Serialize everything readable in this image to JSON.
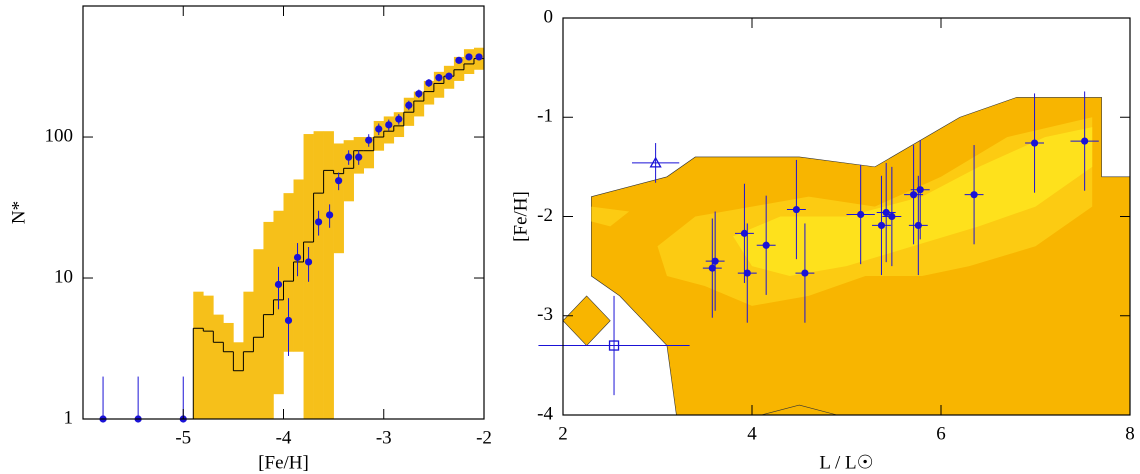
{
  "chart_data": [
    {
      "type": "histogram",
      "xlabel": "[Fe/H]",
      "ylabel": "N*",
      "xlim": [
        -6,
        -2
      ],
      "ylim": [
        1,
        850
      ],
      "log_y": true,
      "xticks": [
        -5,
        -4,
        -3,
        -2
      ],
      "yticks": [
        1,
        10,
        100
      ],
      "bins": [
        -4.9,
        -4.8,
        -4.7,
        -4.6,
        -4.5,
        -4.4,
        -4.3,
        -4.2,
        -4.1,
        -4.0,
        -3.9,
        -3.8,
        -3.7,
        -3.6,
        -3.5,
        -3.4,
        -3.3,
        -3.2,
        -3.1,
        -3.0,
        -2.9,
        -2.8,
        -2.7,
        -2.6,
        -2.5,
        -2.4,
        -2.3,
        -2.2,
        -2.1,
        -2.0
      ],
      "counts": [
        4.4,
        4.2,
        3.5,
        3.0,
        2.2,
        3.0,
        3.8,
        5.5,
        7,
        9.5,
        13,
        18,
        40,
        58,
        55,
        60,
        80,
        80,
        100,
        110,
        120,
        150,
        180,
        210,
        240,
        270,
        300,
        330,
        360
      ],
      "band_low": [
        1,
        1,
        1,
        1,
        1,
        1,
        1,
        1,
        1.5,
        3,
        3,
        1,
        1,
        1,
        15,
        35,
        55,
        60,
        80,
        90,
        100,
        120,
        140,
        170,
        190,
        220,
        250,
        280,
        300
      ],
      "band_high": [
        8,
        7.5,
        5.5,
        4.8,
        3.5,
        8,
        16,
        25,
        30,
        40,
        50,
        105,
        110,
        110,
        90,
        95,
        100,
        100,
        130,
        140,
        150,
        190,
        210,
        250,
        290,
        320,
        370,
        420,
        430
      ],
      "band_color": "#f6c01a",
      "line_color": "#000000",
      "points": {
        "color": "#1a12d6",
        "x": [
          -5.8,
          -5.45,
          -5.0,
          -4.05,
          -3.95,
          -3.86,
          -3.75,
          -3.65,
          -3.54,
          -3.45,
          -3.35,
          -3.25,
          -3.15,
          -3.05,
          -2.95,
          -2.85,
          -2.75,
          -2.65,
          -2.55,
          -2.45,
          -2.35,
          -2.25,
          -2.15,
          -2.05
        ],
        "y": [
          1,
          1,
          1,
          9,
          5,
          14,
          13,
          25,
          28,
          49,
          72,
          72,
          95,
          114,
          122,
          134,
          168,
          203,
          242,
          264,
          270,
          350,
          370,
          370
        ],
        "yerr": [
          1,
          1,
          1,
          3,
          2.2,
          3.7,
          3.6,
          5,
          5.3,
          7,
          8.5,
          8.5,
          9.7,
          10.7,
          11,
          11.6,
          13,
          14,
          15.6,
          16,
          16.4,
          18.7,
          19,
          19
        ]
      }
    },
    {
      "type": "contour",
      "xlabel": "L / L☉",
      "ylabel": "[Fe/H]",
      "xlim": [
        2,
        8
      ],
      "ylim": [
        -4,
        0
      ],
      "xticks": [
        2,
        4,
        6,
        8
      ],
      "yticks": [
        -4,
        -3,
        -2,
        -1,
        0
      ],
      "contours": [
        {
          "color": "#f8b500",
          "x": [
            2.3,
            3.1,
            3.4,
            4.5,
            5.3,
            6.2,
            6.8,
            7.7,
            7.7,
            8,
            8,
            3.2,
            3.1,
            2.6,
            2.3
          ],
          "y": [
            -1.8,
            -1.6,
            -1.4,
            -1.4,
            -1.5,
            -1.0,
            -0.8,
            -0.8,
            -1.6,
            -1.6,
            -4,
            -4,
            -3.3,
            -2.8,
            -2.6
          ]
        },
        {
          "color": "#f8b500",
          "x": [
            2.25,
            2.5,
            2.25,
            2.0
          ],
          "y": [
            -2.8,
            -3.05,
            -3.3,
            -3.05
          ]
        },
        {
          "color": "#f8b500",
          "x": [
            4.5,
            4.9,
            4.1
          ],
          "y": [
            -3.9,
            -4,
            -4
          ]
        },
        {
          "color": "#fccb12",
          "x": [
            3.0,
            3.4,
            4.0,
            4.6,
            5.3,
            6.0,
            6.7,
            7.6,
            7.6,
            7.0,
            6.3,
            5.8,
            5.2,
            4.6,
            4.0,
            3.5,
            3.1
          ],
          "y": [
            -2.3,
            -2.0,
            -1.9,
            -1.8,
            -1.9,
            -1.6,
            -1.2,
            -1.0,
            -1.9,
            -2.3,
            -2.5,
            -2.6,
            -2.6,
            -2.8,
            -2.9,
            -2.7,
            -2.6
          ]
        },
        {
          "color": "#fccb12",
          "x": [
            2.3,
            2.7,
            2.5,
            2.3
          ],
          "y": [
            -1.9,
            -1.95,
            -2.1,
            -2.05
          ]
        },
        {
          "color": "#fee11c",
          "x": [
            3.8,
            4.3,
            5.0,
            5.8,
            6.4,
            7.1,
            7.6,
            7.6,
            7.0,
            6.4,
            5.7,
            5.0,
            4.4,
            4.0
          ],
          "y": [
            -2.2,
            -2.0,
            -2.0,
            -1.8,
            -1.5,
            -1.2,
            -1.1,
            -1.5,
            -1.9,
            -2.1,
            -2.3,
            -2.5,
            -2.6,
            -2.5
          ]
        }
      ],
      "series": [
        {
          "marker": "circle",
          "color": "#1a12d6",
          "x": [
            3.58,
            3.61,
            3.92,
            3.95,
            4.15,
            4.47,
            4.56,
            5.15,
            5.37,
            5.42,
            5.48,
            5.71,
            5.78,
            5.76,
            6.35,
            6.99,
            7.52
          ],
          "y": [
            -2.52,
            -2.45,
            -2.17,
            -2.57,
            -2.29,
            -1.93,
            -2.57,
            -1.98,
            -2.09,
            -1.96,
            -2.0,
            -1.78,
            -1.73,
            -2.09,
            -1.78,
            -1.26,
            -1.24
          ],
          "xerr": [
            0.1,
            0.1,
            0.1,
            0.1,
            0.1,
            0.1,
            0.1,
            0.15,
            0.1,
            0.1,
            0.1,
            0.1,
            0.1,
            0.1,
            0.1,
            0.1,
            0.15
          ],
          "yerr": [
            0.5,
            0.5,
            0.5,
            0.5,
            0.5,
            0.5,
            0.5,
            0.5,
            0.5,
            0.5,
            0.5,
            0.5,
            0.5,
            0.5,
            0.5,
            0.5,
            0.5
          ]
        },
        {
          "marker": "triangle",
          "color": "#1a12d6",
          "x": [
            2.98
          ],
          "y": [
            -1.46
          ],
          "xerr": [
            0.25
          ],
          "yerr": [
            0.2
          ]
        },
        {
          "marker": "square",
          "color": "#1a12d6",
          "x": [
            2.54
          ],
          "y": [
            -3.3
          ],
          "xerr": [
            0.8
          ],
          "yerr": [
            0.5
          ]
        }
      ]
    }
  ]
}
